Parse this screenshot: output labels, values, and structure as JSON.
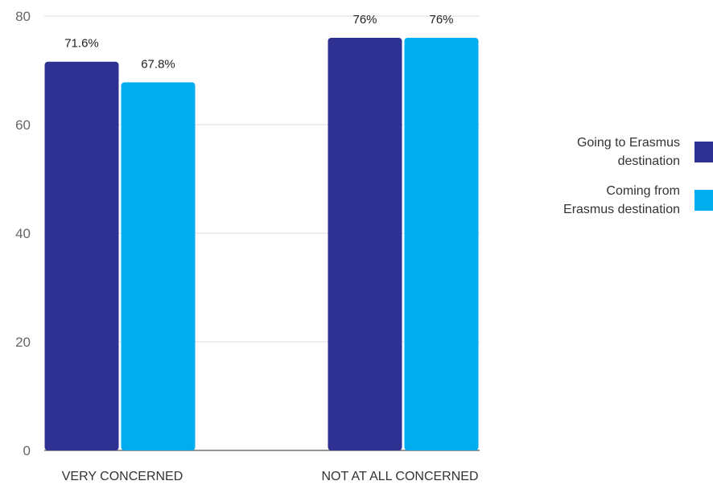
{
  "chart_data": {
    "type": "bar",
    "categories": [
      "VERY CONCERNED",
      "NOT AT ALL CONCERNED"
    ],
    "series": [
      {
        "name": "Going to Erasmus destination",
        "legend_lines": [
          "Going to Erasmus",
          "destination"
        ],
        "color": "#2e3192",
        "values": [
          71.6,
          76
        ],
        "labels": [
          "71.6%",
          "76%"
        ]
      },
      {
        "name": "Coming from Erasmus destination",
        "legend_lines": [
          "Coming from",
          "Erasmus destination"
        ],
        "color": "#00aeef",
        "values": [
          67.8,
          76
        ],
        "labels": [
          "67.8%",
          "76%"
        ]
      }
    ],
    "ylim": [
      0,
      80
    ],
    "yticks": [
      0,
      20,
      40,
      60,
      80
    ],
    "ytick_labels": [
      "0",
      "20",
      "40",
      "60",
      "80"
    ],
    "grid": true,
    "legend_position": "right",
    "title": "",
    "xlabel": "",
    "ylabel": ""
  }
}
